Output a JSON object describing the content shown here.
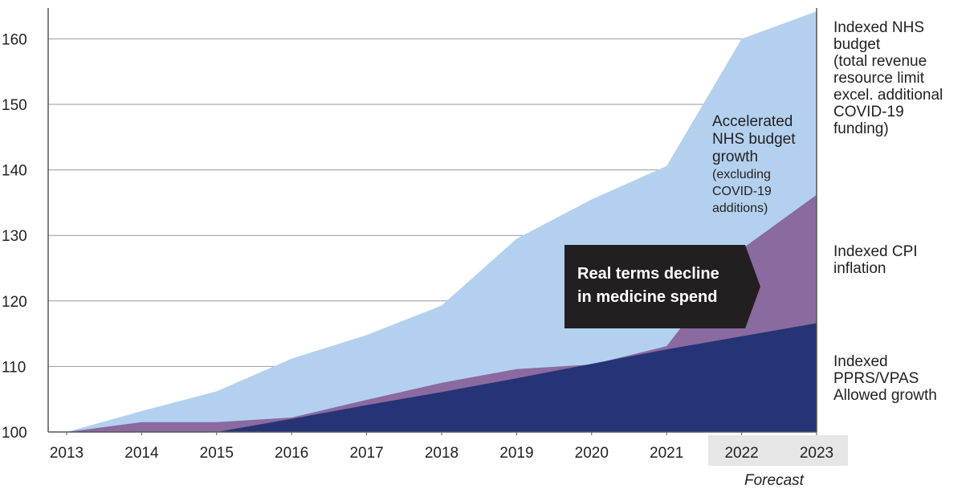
{
  "chart_data": {
    "type": "area",
    "x": [
      2013,
      2014,
      2015,
      2016,
      2017,
      2018,
      2019,
      2020,
      2021,
      2022,
      2023
    ],
    "ylim": [
      100,
      165
    ],
    "yticks": [
      100,
      110,
      120,
      130,
      140,
      150,
      160
    ],
    "grid": true,
    "forecast_years": [
      2022,
      2023
    ],
    "forecast_label": "Forecast",
    "series": [
      {
        "name": "Indexed NHS budget (total revenue resource limit excel. additional COVID-19 funding)",
        "label_lines": [
          "Indexed NHS",
          "budget",
          "(total revenue",
          "resource limit",
          "excel. additional",
          "COVID-19",
          "funding)"
        ],
        "color": "#b3d1ef",
        "values": [
          100,
          103.2,
          106.2,
          111.2,
          114.8,
          119.3,
          129.5,
          135.5,
          140.6,
          160.0,
          164.2
        ]
      },
      {
        "name": "Indexed CPI inflation",
        "label_lines": [
          "Indexed CPI",
          "inflation"
        ],
        "color": "#8a6a9f",
        "values": [
          100,
          101.5,
          101.5,
          102.2,
          104.9,
          107.5,
          109.6,
          110.3,
          113.1,
          127.9,
          136.2
        ]
      },
      {
        "name": "Indexed PPRS/VPAS Allowed growth",
        "label_lines": [
          "Indexed",
          "PPRS/VPAS",
          "Allowed growth"
        ],
        "color": "#253476",
        "values": [
          100,
          100,
          100,
          102.0,
          104.1,
          106.1,
          108.2,
          110.4,
          112.6,
          114.6,
          116.6
        ]
      }
    ],
    "annotations": {
      "budget_growth": {
        "lines": [
          "Accelerated",
          "NHS budget",
          "growth"
        ],
        "sub_lines": [
          "(excluding",
          "COVID-19",
          "additions)"
        ]
      },
      "callout": {
        "lines": [
          "Real terms decline",
          "in medicine spend"
        ],
        "bg_color": "#231f20",
        "text_color": "#ffffff"
      }
    }
  }
}
